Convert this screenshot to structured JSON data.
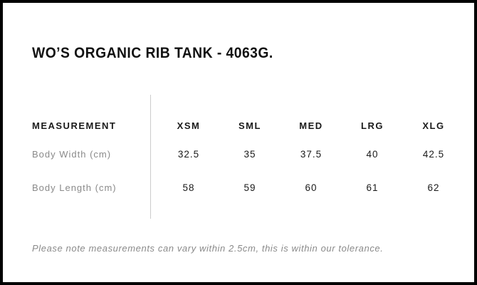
{
  "page": {
    "title": "WO’S ORGANIC RIB TANK - 4063G.",
    "tolerance_note": "Please note measurements can vary within 2.5cm, this is within our tolerance."
  },
  "size_table": {
    "measurement_header": "MEASUREMENT",
    "size_headers": [
      "XSM",
      "SML",
      "MED",
      "LRG",
      "XLG"
    ],
    "rows": [
      {
        "label": "Body Width (cm)",
        "values": [
          "32.5",
          "35",
          "37.5",
          "40",
          "42.5"
        ]
      },
      {
        "label": "Body Length (cm)",
        "values": [
          "58",
          "59",
          "60",
          "61",
          "62"
        ]
      }
    ]
  },
  "colors": {
    "border": "#000000",
    "background": "#ffffff",
    "heading_text": "#111111",
    "value_text": "#1a1a1a",
    "muted_text": "#8a8a8a",
    "divider": "#cccccc"
  }
}
